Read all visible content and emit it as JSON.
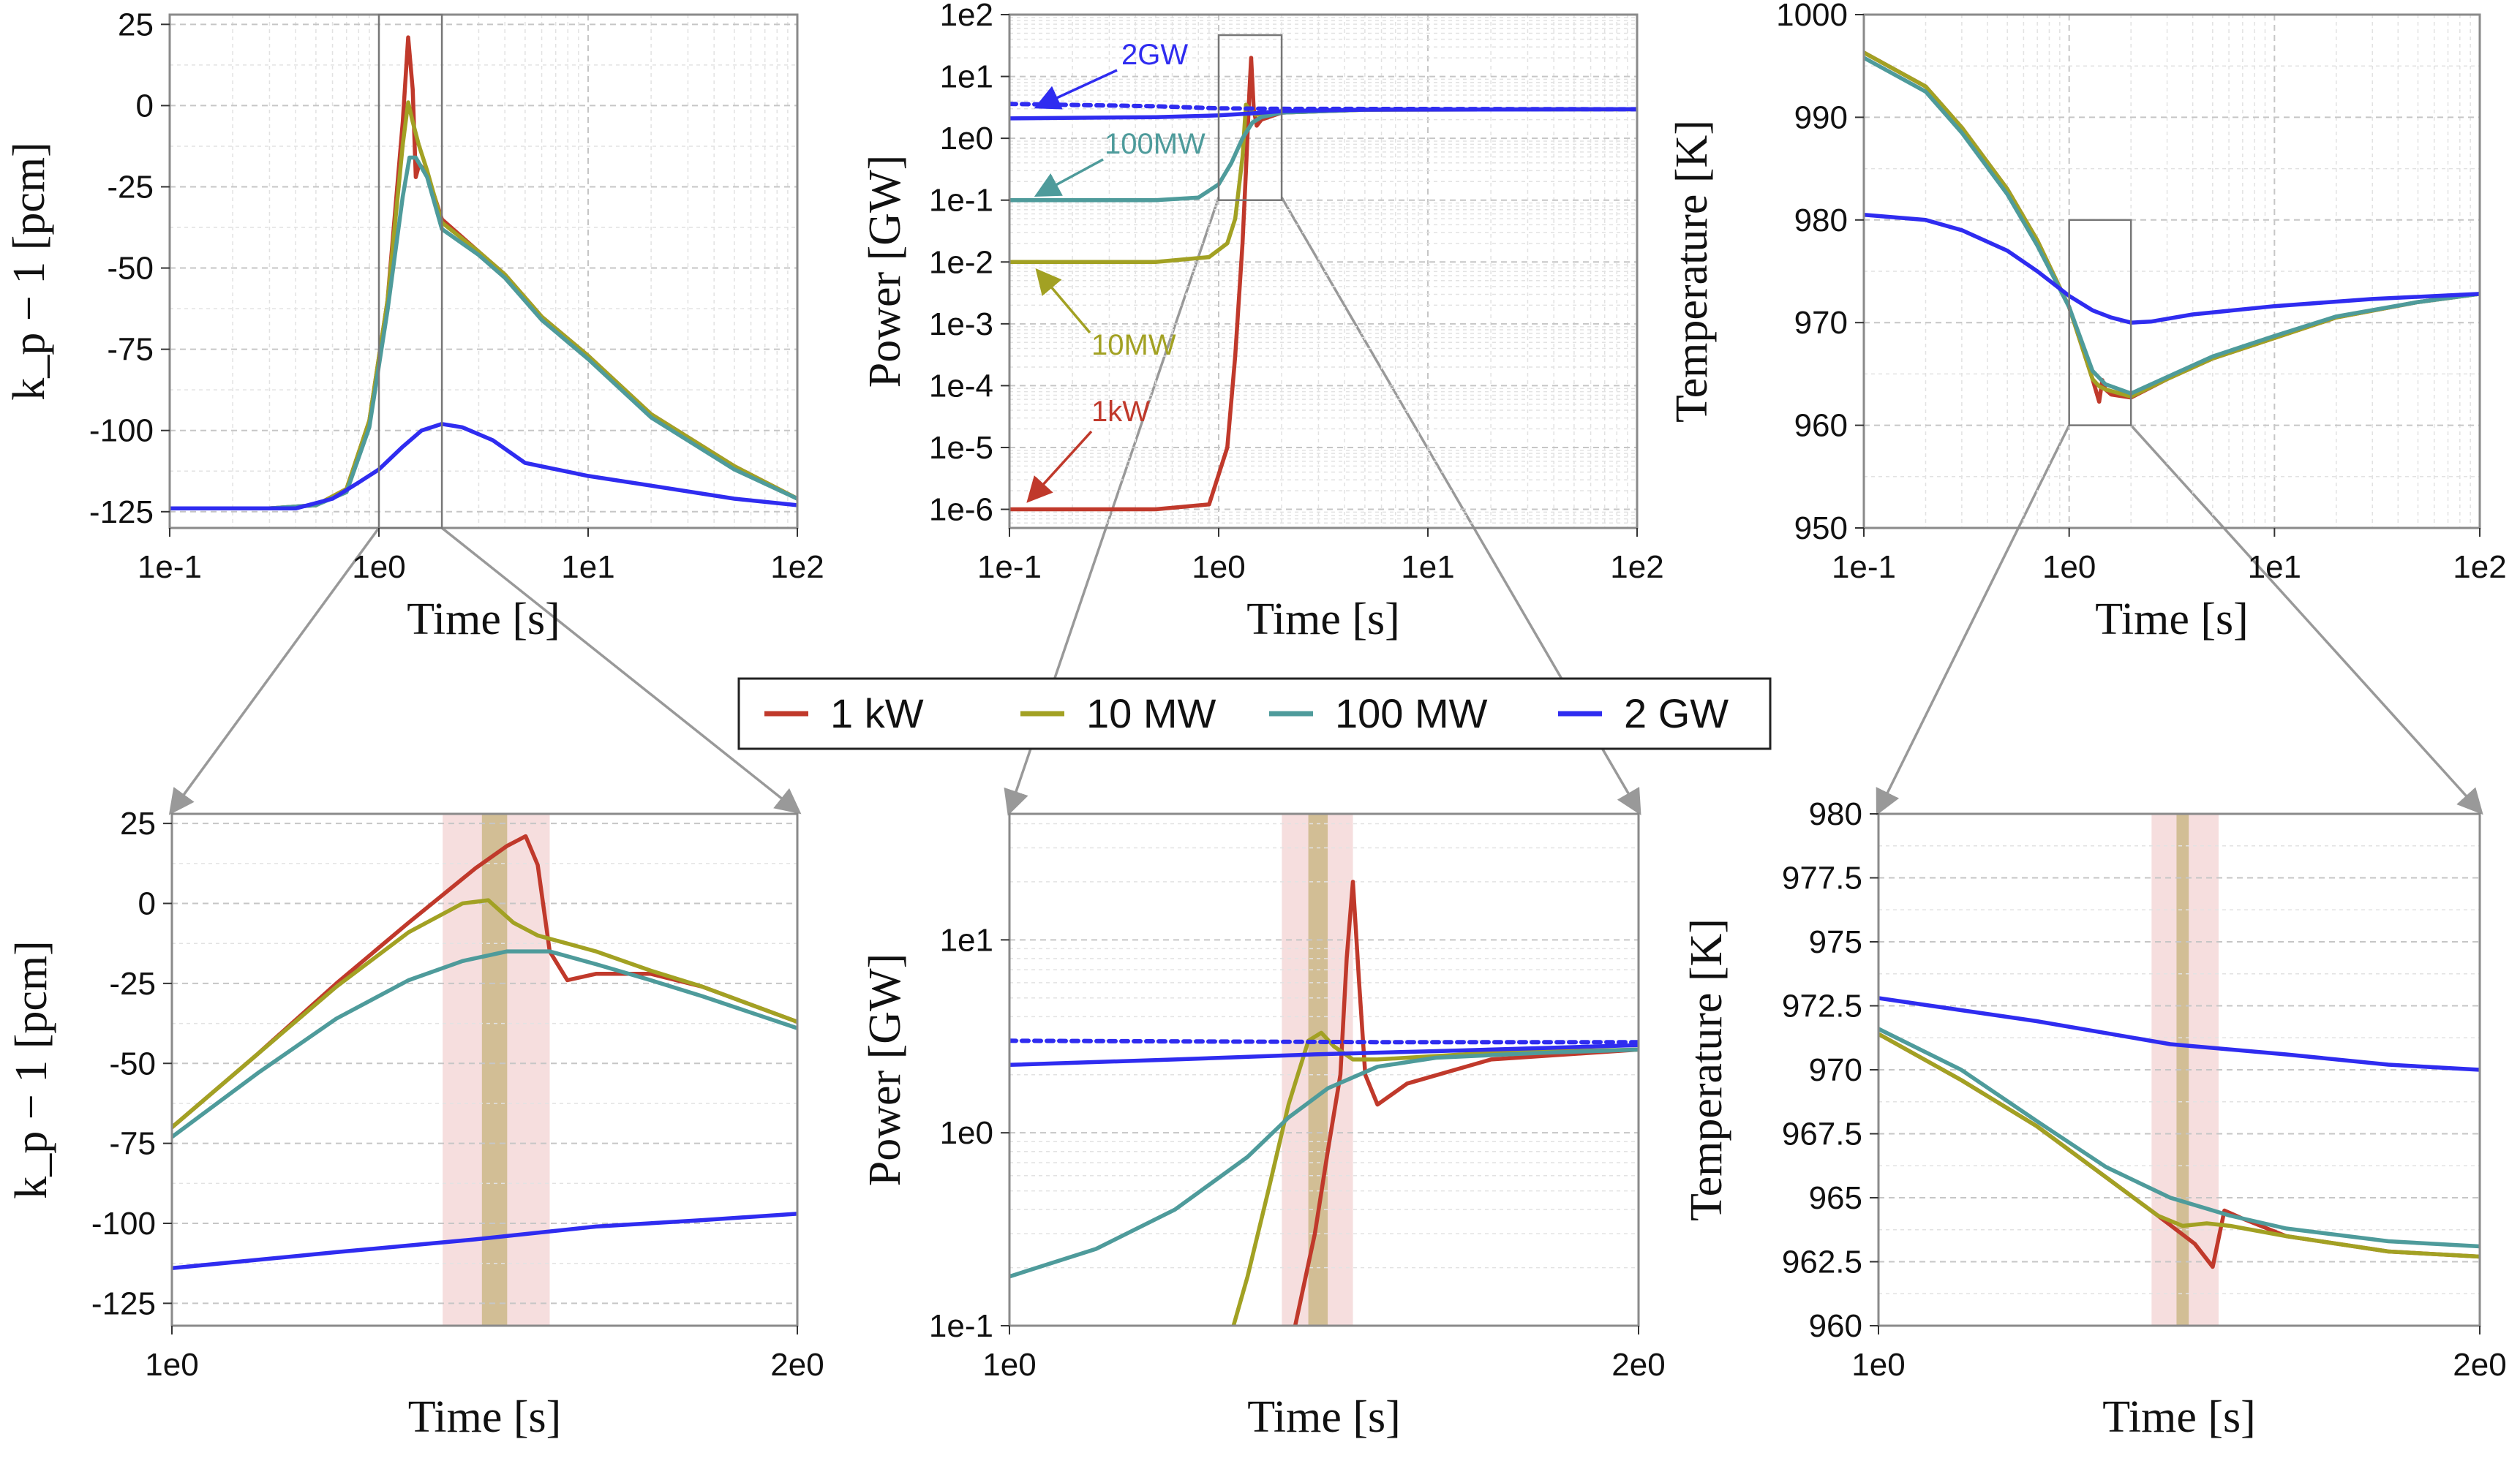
{
  "colors": {
    "1 kW": "#c0392b",
    "10 MW": "#a2a123",
    "100 MW": "#4e9b9b",
    "2 GW": "#2f2cf0",
    "band_pink": "#f3d3d3",
    "band_olive": "#cbb888",
    "connector": "#999999"
  },
  "legend": {
    "entries": [
      "1 kW",
      "10 MW",
      "100 MW",
      "2 GW"
    ]
  },
  "annotations": {
    "power_top": [
      "2GW",
      "100MW",
      "10MW",
      "1kW"
    ]
  },
  "chart_data": [
    {
      "id": "kp_full",
      "type": "line",
      "xscale": "log",
      "xlim": [
        0.1,
        100
      ],
      "ylim": [
        -130,
        28
      ],
      "xticks": [
        0.1,
        1,
        10,
        100
      ],
      "xtick_labels": [
        "1e-1",
        "1e0",
        "1e1",
        "1e2"
      ],
      "yticks": [
        25,
        0,
        -25,
        -50,
        -75,
        -100,
        -125
      ],
      "ytick_labels": [
        "25",
        "0",
        "-25",
        "-50",
        "-75",
        "-100",
        "-125"
      ],
      "xlabel": "Time [s]",
      "ylabel": "k_p − 1 [pcm]",
      "grid": true,
      "zoom_box_x": [
        1,
        2
      ],
      "series": [
        {
          "name": "1 kW",
          "x": [
            0.1,
            0.3,
            0.5,
            0.7,
            0.9,
            1.1,
            1.3,
            1.38,
            1.45,
            1.5,
            1.56,
            1.7,
            2.0,
            3.0,
            4.0,
            6.0,
            10,
            20,
            50,
            100
          ],
          "y": [
            -124,
            -124,
            -123,
            -118,
            -97,
            -60,
            -5,
            21,
            5,
            -22,
            -18,
            -21,
            -35,
            -45,
            -52,
            -65,
            -77,
            -95,
            -111,
            -121
          ]
        },
        {
          "name": "10 MW",
          "x": [
            0.1,
            0.3,
            0.5,
            0.7,
            0.9,
            1.1,
            1.3,
            1.38,
            1.45,
            1.55,
            1.7,
            2.0,
            3.0,
            4.0,
            6.0,
            10,
            20,
            50,
            100
          ],
          "y": [
            -124,
            -124,
            -123,
            -118,
            -97,
            -60,
            -12,
            1,
            -5,
            -12,
            -20,
            -36,
            -45,
            -52,
            -65,
            -77,
            -95,
            -111,
            -121
          ]
        },
        {
          "name": "100 MW",
          "x": [
            0.1,
            0.3,
            0.5,
            0.7,
            0.9,
            1.1,
            1.3,
            1.4,
            1.5,
            1.7,
            2.0,
            3.0,
            4.0,
            6.0,
            10,
            20,
            50,
            100
          ],
          "y": [
            -124,
            -124,
            -123,
            -119,
            -99,
            -63,
            -28,
            -16,
            -16,
            -22,
            -38,
            -46,
            -53,
            -66,
            -78,
            -96,
            -112,
            -121
          ]
        },
        {
          "name": "2 GW",
          "x": [
            0.1,
            0.4,
            0.6,
            0.8,
            1.0,
            1.3,
            1.6,
            2.0,
            2.5,
            3.5,
            5.0,
            10,
            20,
            50,
            100
          ],
          "y": [
            -124,
            -124,
            -121,
            -116,
            -112,
            -105,
            -100,
            -98,
            -99,
            -103,
            -110,
            -114,
            -117,
            -121,
            -123
          ]
        }
      ]
    },
    {
      "id": "power_full",
      "type": "line",
      "xscale": "log",
      "yscale": "log",
      "xlim": [
        0.1,
        100
      ],
      "ylim": [
        5e-07,
        100
      ],
      "xticks": [
        0.1,
        1,
        10,
        100
      ],
      "xtick_labels": [
        "1e-1",
        "1e0",
        "1e1",
        "1e2"
      ],
      "yticks": [
        100,
        10,
        1,
        0.1,
        0.01,
        0.001,
        0.0001,
        1e-05,
        1e-06
      ],
      "ytick_labels": [
        "1e2",
        "1e1",
        "1e0",
        "1e-1",
        "1e-2",
        "1e-3",
        "1e-4",
        "1e-5",
        "1e-6"
      ],
      "xlabel": "Time [s]",
      "ylabel": "Power [GW]",
      "grid": true,
      "zoom_box_x": [
        1,
        2
      ],
      "series": [
        {
          "name": "1 kW",
          "x": [
            0.1,
            0.5,
            0.9,
            1.1,
            1.2,
            1.3,
            1.35,
            1.4,
            1.43,
            1.47,
            1.52,
            1.6,
            2.0,
            5.0,
            100
          ],
          "y": [
            1e-06,
            1e-06,
            1.2e-06,
            1e-05,
            0.0003,
            0.02,
            0.3,
            5,
            20,
            3,
            1.6,
            2.0,
            2.6,
            2.9,
            2.95
          ]
        },
        {
          "name": "10 MW",
          "x": [
            0.1,
            0.5,
            0.9,
            1.1,
            1.2,
            1.3,
            1.35,
            1.4,
            1.5,
            2.0,
            5.0,
            100
          ],
          "y": [
            0.01,
            0.01,
            0.012,
            0.02,
            0.05,
            0.5,
            3.5,
            3,
            2.4,
            2.6,
            2.9,
            2.95
          ]
        },
        {
          "name": "100 MW",
          "x": [
            0.1,
            0.5,
            0.8,
            1.0,
            1.15,
            1.3,
            1.45,
            1.6,
            2.0,
            5.0,
            100
          ],
          "y": [
            0.1,
            0.1,
            0.11,
            0.18,
            0.4,
            1.0,
            1.8,
            2.2,
            2.6,
            2.9,
            2.95
          ]
        },
        {
          "name": "2 GW",
          "x": [
            0.1,
            0.5,
            1.0,
            1.5,
            2.0,
            5.0,
            100
          ],
          "y": [
            2.1,
            2.2,
            2.35,
            2.55,
            2.75,
            2.9,
            2.95
          ]
        },
        {
          "name": "2 GW",
          "style": "dotted",
          "x": [
            0.1,
            0.5,
            1.0,
            2.0,
            100
          ],
          "y": [
            3.6,
            3.3,
            3.05,
            3.0,
            2.95
          ]
        }
      ]
    },
    {
      "id": "temp_full",
      "type": "line",
      "xscale": "log",
      "xlim": [
        0.1,
        100
      ],
      "ylim": [
        950,
        1000
      ],
      "xticks": [
        0.1,
        1,
        10,
        100
      ],
      "xtick_labels": [
        "1e-1",
        "1e0",
        "1e1",
        "1e2"
      ],
      "yticks": [
        1000,
        990,
        980,
        970,
        960,
        950
      ],
      "ytick_labels": [
        "1000",
        "990",
        "980",
        "970",
        "960",
        "950"
      ],
      "xlabel": "Time [s]",
      "ylabel": "Temperature [K]",
      "grid": true,
      "zoom_box_x": [
        1,
        2
      ],
      "zoom_box_y": [
        960,
        980
      ],
      "series": [
        {
          "name": "1 kW",
          "x": [
            0.1,
            0.2,
            0.3,
            0.5,
            0.7,
            1.0,
            1.3,
            1.4,
            1.45,
            1.5,
            1.6,
            2.0,
            3.0,
            5.0,
            10,
            20,
            50,
            100
          ],
          "y": [
            996.3,
            993,
            989,
            983,
            978,
            971.5,
            964.5,
            962.3,
            964.4,
            963.5,
            963,
            962.7,
            964.5,
            966.5,
            968.5,
            970.5,
            972,
            972.8
          ]
        },
        {
          "name": "10 MW",
          "x": [
            0.1,
            0.2,
            0.3,
            0.5,
            0.7,
            1.0,
            1.3,
            1.4,
            1.5,
            2.0,
            3.0,
            5.0,
            10,
            20,
            50,
            100
          ],
          "y": [
            996.3,
            993,
            989,
            983,
            978,
            971.5,
            964.5,
            963.8,
            963.5,
            962.8,
            964.5,
            966.5,
            968.5,
            970.5,
            972,
            972.8
          ]
        },
        {
          "name": "100 MW",
          "x": [
            0.1,
            0.2,
            0.3,
            0.5,
            0.7,
            1.0,
            1.3,
            1.5,
            2.0,
            3.0,
            5.0,
            10,
            20,
            50,
            100
          ],
          "y": [
            995.8,
            992.5,
            988.5,
            982.5,
            977.5,
            971.5,
            965.3,
            964,
            963.1,
            964.7,
            966.7,
            968.7,
            970.6,
            972,
            972.8
          ]
        },
        {
          "name": "2 GW",
          "x": [
            0.1,
            0.2,
            0.3,
            0.5,
            0.7,
            1.0,
            1.3,
            1.6,
            2.0,
            2.5,
            4.0,
            10,
            30,
            100
          ],
          "y": [
            980.5,
            980,
            979,
            977,
            975,
            972.6,
            971.2,
            970.5,
            970.0,
            970.1,
            970.8,
            971.6,
            972.3,
            972.8
          ]
        }
      ]
    },
    {
      "id": "kp_zoom",
      "type": "line",
      "xscale": "log",
      "xlim": [
        1,
        2
      ],
      "ylim": [
        -132,
        28
      ],
      "xticks": [
        1,
        2
      ],
      "xtick_labels": [
        "1e0",
        "2e0"
      ],
      "yticks": [
        25,
        0,
        -25,
        -50,
        -75,
        -100,
        -125
      ],
      "ytick_labels": [
        "25",
        "0",
        "-25",
        "-50",
        "-75",
        "-100",
        "-125"
      ],
      "xlabel": "Time [s]",
      "ylabel": "k_p − 1 [pcm]",
      "grid": true,
      "bands": [
        {
          "x": [
            1.35,
            1.52
          ],
          "color": "band_pink"
        },
        {
          "x": [
            1.41,
            1.45
          ],
          "color": "band_olive"
        }
      ],
      "series": [
        {
          "name": "1 kW",
          "x": [
            1.0,
            1.1,
            1.2,
            1.3,
            1.4,
            1.45,
            1.48,
            1.5,
            1.52,
            1.55,
            1.6,
            1.7,
            1.8,
            2.0
          ],
          "y": [
            -70,
            -47,
            -25,
            -6,
            11,
            18,
            21,
            12,
            -15,
            -24,
            -22,
            -22,
            -26,
            -37
          ]
        },
        {
          "name": "10 MW",
          "x": [
            1.0,
            1.1,
            1.2,
            1.3,
            1.38,
            1.42,
            1.46,
            1.5,
            1.6,
            1.7,
            1.8,
            2.0
          ],
          "y": [
            -70,
            -47,
            -26,
            -9,
            0,
            1,
            -6,
            -10,
            -15,
            -21,
            -26,
            -37
          ]
        },
        {
          "name": "100 MW",
          "x": [
            1.0,
            1.1,
            1.2,
            1.3,
            1.38,
            1.45,
            1.52,
            1.6,
            1.7,
            1.8,
            2.0
          ],
          "y": [
            -73,
            -53,
            -36,
            -24,
            -18,
            -15,
            -15,
            -19,
            -24,
            -29,
            -39
          ]
        },
        {
          "name": "2 GW",
          "x": [
            1.0,
            1.2,
            1.4,
            1.6,
            1.8,
            2.0
          ],
          "y": [
            -114,
            -109,
            -105,
            -101,
            -99,
            -97
          ]
        }
      ]
    },
    {
      "id": "power_zoom",
      "type": "line",
      "xscale": "log",
      "yscale": "log",
      "xlim": [
        1,
        2
      ],
      "ylim": [
        0.1,
        45
      ],
      "xticks": [
        1,
        2
      ],
      "xtick_labels": [
        "1e0",
        "2e0"
      ],
      "yticks": [
        10,
        1,
        0.1
      ],
      "ytick_labels": [
        "1e1",
        "1e0",
        "1e-1"
      ],
      "xlabel": "Time [s]",
      "ylabel": "Power [GW]",
      "grid": true,
      "bands": [
        {
          "x": [
            1.35,
            1.46
          ],
          "color": "band_pink"
        },
        {
          "x": [
            1.39,
            1.42
          ],
          "color": "band_olive"
        }
      ],
      "series": [
        {
          "name": "1 kW",
          "x": [
            1.37,
            1.4,
            1.42,
            1.44,
            1.45,
            1.46,
            1.47,
            1.48,
            1.5,
            1.55,
            1.7,
            2.0
          ],
          "y": [
            0.1,
            0.3,
            0.8,
            2,
            8,
            20,
            6,
            2,
            1.4,
            1.8,
            2.4,
            2.7
          ]
        },
        {
          "name": "10 MW",
          "x": [
            1.28,
            1.3,
            1.33,
            1.36,
            1.39,
            1.41,
            1.43,
            1.46,
            1.5,
            1.7,
            2.0
          ],
          "y": [
            0.1,
            0.18,
            0.5,
            1.4,
            3.0,
            3.3,
            2.8,
            2.4,
            2.4,
            2.6,
            2.7
          ]
        },
        {
          "name": "100 MW",
          "x": [
            1.0,
            1.1,
            1.2,
            1.3,
            1.36,
            1.42,
            1.5,
            1.6,
            1.8,
            2.0
          ],
          "y": [
            0.18,
            0.25,
            0.4,
            0.75,
            1.2,
            1.7,
            2.2,
            2.45,
            2.6,
            2.7
          ]
        },
        {
          "name": "2 GW",
          "x": [
            1.0,
            1.2,
            1.4,
            1.6,
            1.8,
            2.0
          ],
          "y": [
            2.25,
            2.4,
            2.55,
            2.65,
            2.75,
            2.85
          ]
        },
        {
          "name": "2 GW",
          "style": "dotted",
          "x": [
            1.0,
            1.5,
            2.0
          ],
          "y": [
            3.0,
            2.95,
            2.95
          ]
        }
      ]
    },
    {
      "id": "temp_zoom",
      "type": "line",
      "xscale": "log",
      "xlim": [
        1,
        2
      ],
      "ylim": [
        960,
        980
      ],
      "xticks": [
        1,
        2
      ],
      "xtick_labels": [
        "1e0",
        "2e0"
      ],
      "yticks": [
        980,
        977.5,
        975,
        972.5,
        970,
        967.5,
        965,
        962.5,
        960
      ],
      "ytick_labels": [
        "980",
        "977.5",
        "975",
        "972.5",
        "970",
        "967.5",
        "965",
        "962.5",
        "960"
      ],
      "xlabel": "Time [s]",
      "ylabel": "Temperature [K]",
      "grid": true,
      "bands": [
        {
          "x": [
            1.37,
            1.48
          ],
          "color": "band_pink"
        },
        {
          "x": [
            1.41,
            1.43
          ],
          "color": "band_olive"
        }
      ],
      "series": [
        {
          "name": "1 kW",
          "x": [
            1.0,
            1.1,
            1.2,
            1.3,
            1.38,
            1.44,
            1.47,
            1.49,
            1.52,
            1.6,
            1.8,
            2.0
          ],
          "y": [
            971.4,
            969.6,
            967.8,
            965.8,
            964.3,
            963.2,
            962.3,
            964.5,
            964.2,
            963.5,
            962.9,
            962.7
          ]
        },
        {
          "name": "10 MW",
          "x": [
            1.0,
            1.1,
            1.2,
            1.3,
            1.38,
            1.42,
            1.46,
            1.5,
            1.6,
            1.8,
            2.0
          ],
          "y": [
            971.4,
            969.6,
            967.8,
            965.8,
            964.3,
            963.9,
            964.0,
            963.9,
            963.5,
            962.9,
            962.7
          ]
        },
        {
          "name": "100 MW",
          "x": [
            1.0,
            1.1,
            1.2,
            1.3,
            1.4,
            1.5,
            1.6,
            1.8,
            2.0
          ],
          "y": [
            971.6,
            970.0,
            968.0,
            966.2,
            965.0,
            964.3,
            963.8,
            963.3,
            963.1
          ]
        },
        {
          "name": "2 GW",
          "x": [
            1.0,
            1.2,
            1.4,
            1.6,
            1.8,
            2.0
          ],
          "y": [
            972.8,
            971.9,
            971.0,
            970.6,
            970.2,
            970.0
          ]
        }
      ]
    }
  ]
}
